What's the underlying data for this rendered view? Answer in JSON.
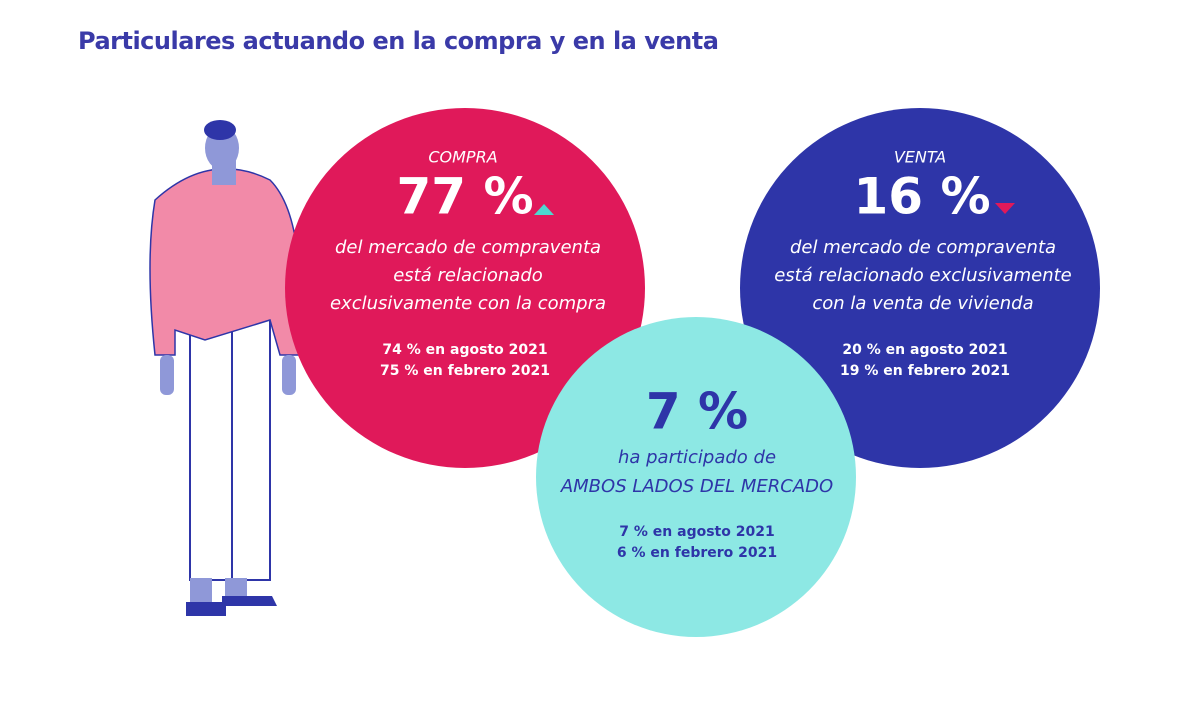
{
  "header": {
    "title": "Particulares actuando en la compra y en la venta"
  },
  "circles": [
    {
      "label": "COMPRA",
      "value": "77 %",
      "description": [
        "del mercado de compraventa",
        "está relacionado",
        "exclusivamente con la compra"
      ],
      "history": [
        "74 % en agosto 2021",
        "75 % en febrero 2021"
      ]
    },
    {
      "label": "VENTA",
      "value": "16 %",
      "description": [
        "del mercado de compraventa",
        "está relacionado exclusivamente",
        "con la venta de vivienda"
      ],
      "history": [
        "20 % en agosto 2021",
        "19 % en febrero 2021"
      ]
    },
    {
      "value": "7 %",
      "description": [
        "ha participado de",
        "AMBOS LADOS DEL MERCADO"
      ],
      "history": [
        "7 % en agosto 2021",
        "6 % en febrero 2021"
      ]
    }
  ]
}
